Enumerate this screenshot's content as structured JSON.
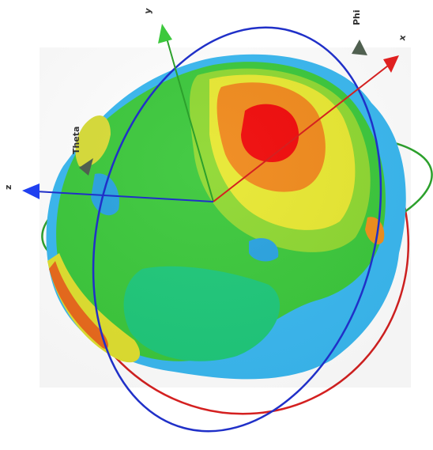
{
  "axes": {
    "x": "x",
    "y": "y",
    "z": "z"
  },
  "angles": {
    "phi": "Phi",
    "theta": "Theta"
  }
}
